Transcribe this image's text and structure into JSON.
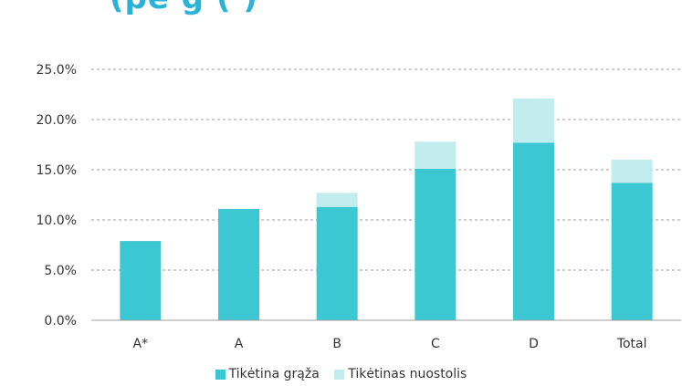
{
  "page": {
    "title_partial": "(pe    g (  )"
  },
  "colors": {
    "primary": "#3cc8d2",
    "secondary": "#c3ecef",
    "grid": "#9e9e9e",
    "axis": "#9e9e9e",
    "text": "#333333"
  },
  "chart_data": {
    "type": "bar",
    "stacked": true,
    "categories": [
      "A*",
      "A",
      "B",
      "C",
      "D",
      "Total"
    ],
    "series": [
      {
        "name": "Tikėtina grąža",
        "values": [
          7.9,
          11.1,
          11.3,
          15.1,
          17.7,
          13.7
        ]
      },
      {
        "name": "Tikėtinas nuostolis",
        "values": [
          0,
          0,
          1.4,
          2.7,
          4.4,
          2.3
        ]
      }
    ],
    "ylim": [
      0,
      25
    ],
    "yticks": [
      "0.0%",
      "5.0%",
      "10.0%",
      "15.0%",
      "20.0%",
      "25.0%"
    ],
    "ytick_values": [
      0,
      5,
      10,
      15,
      20,
      25
    ],
    "grid": true,
    "legend_position": "bottom"
  }
}
